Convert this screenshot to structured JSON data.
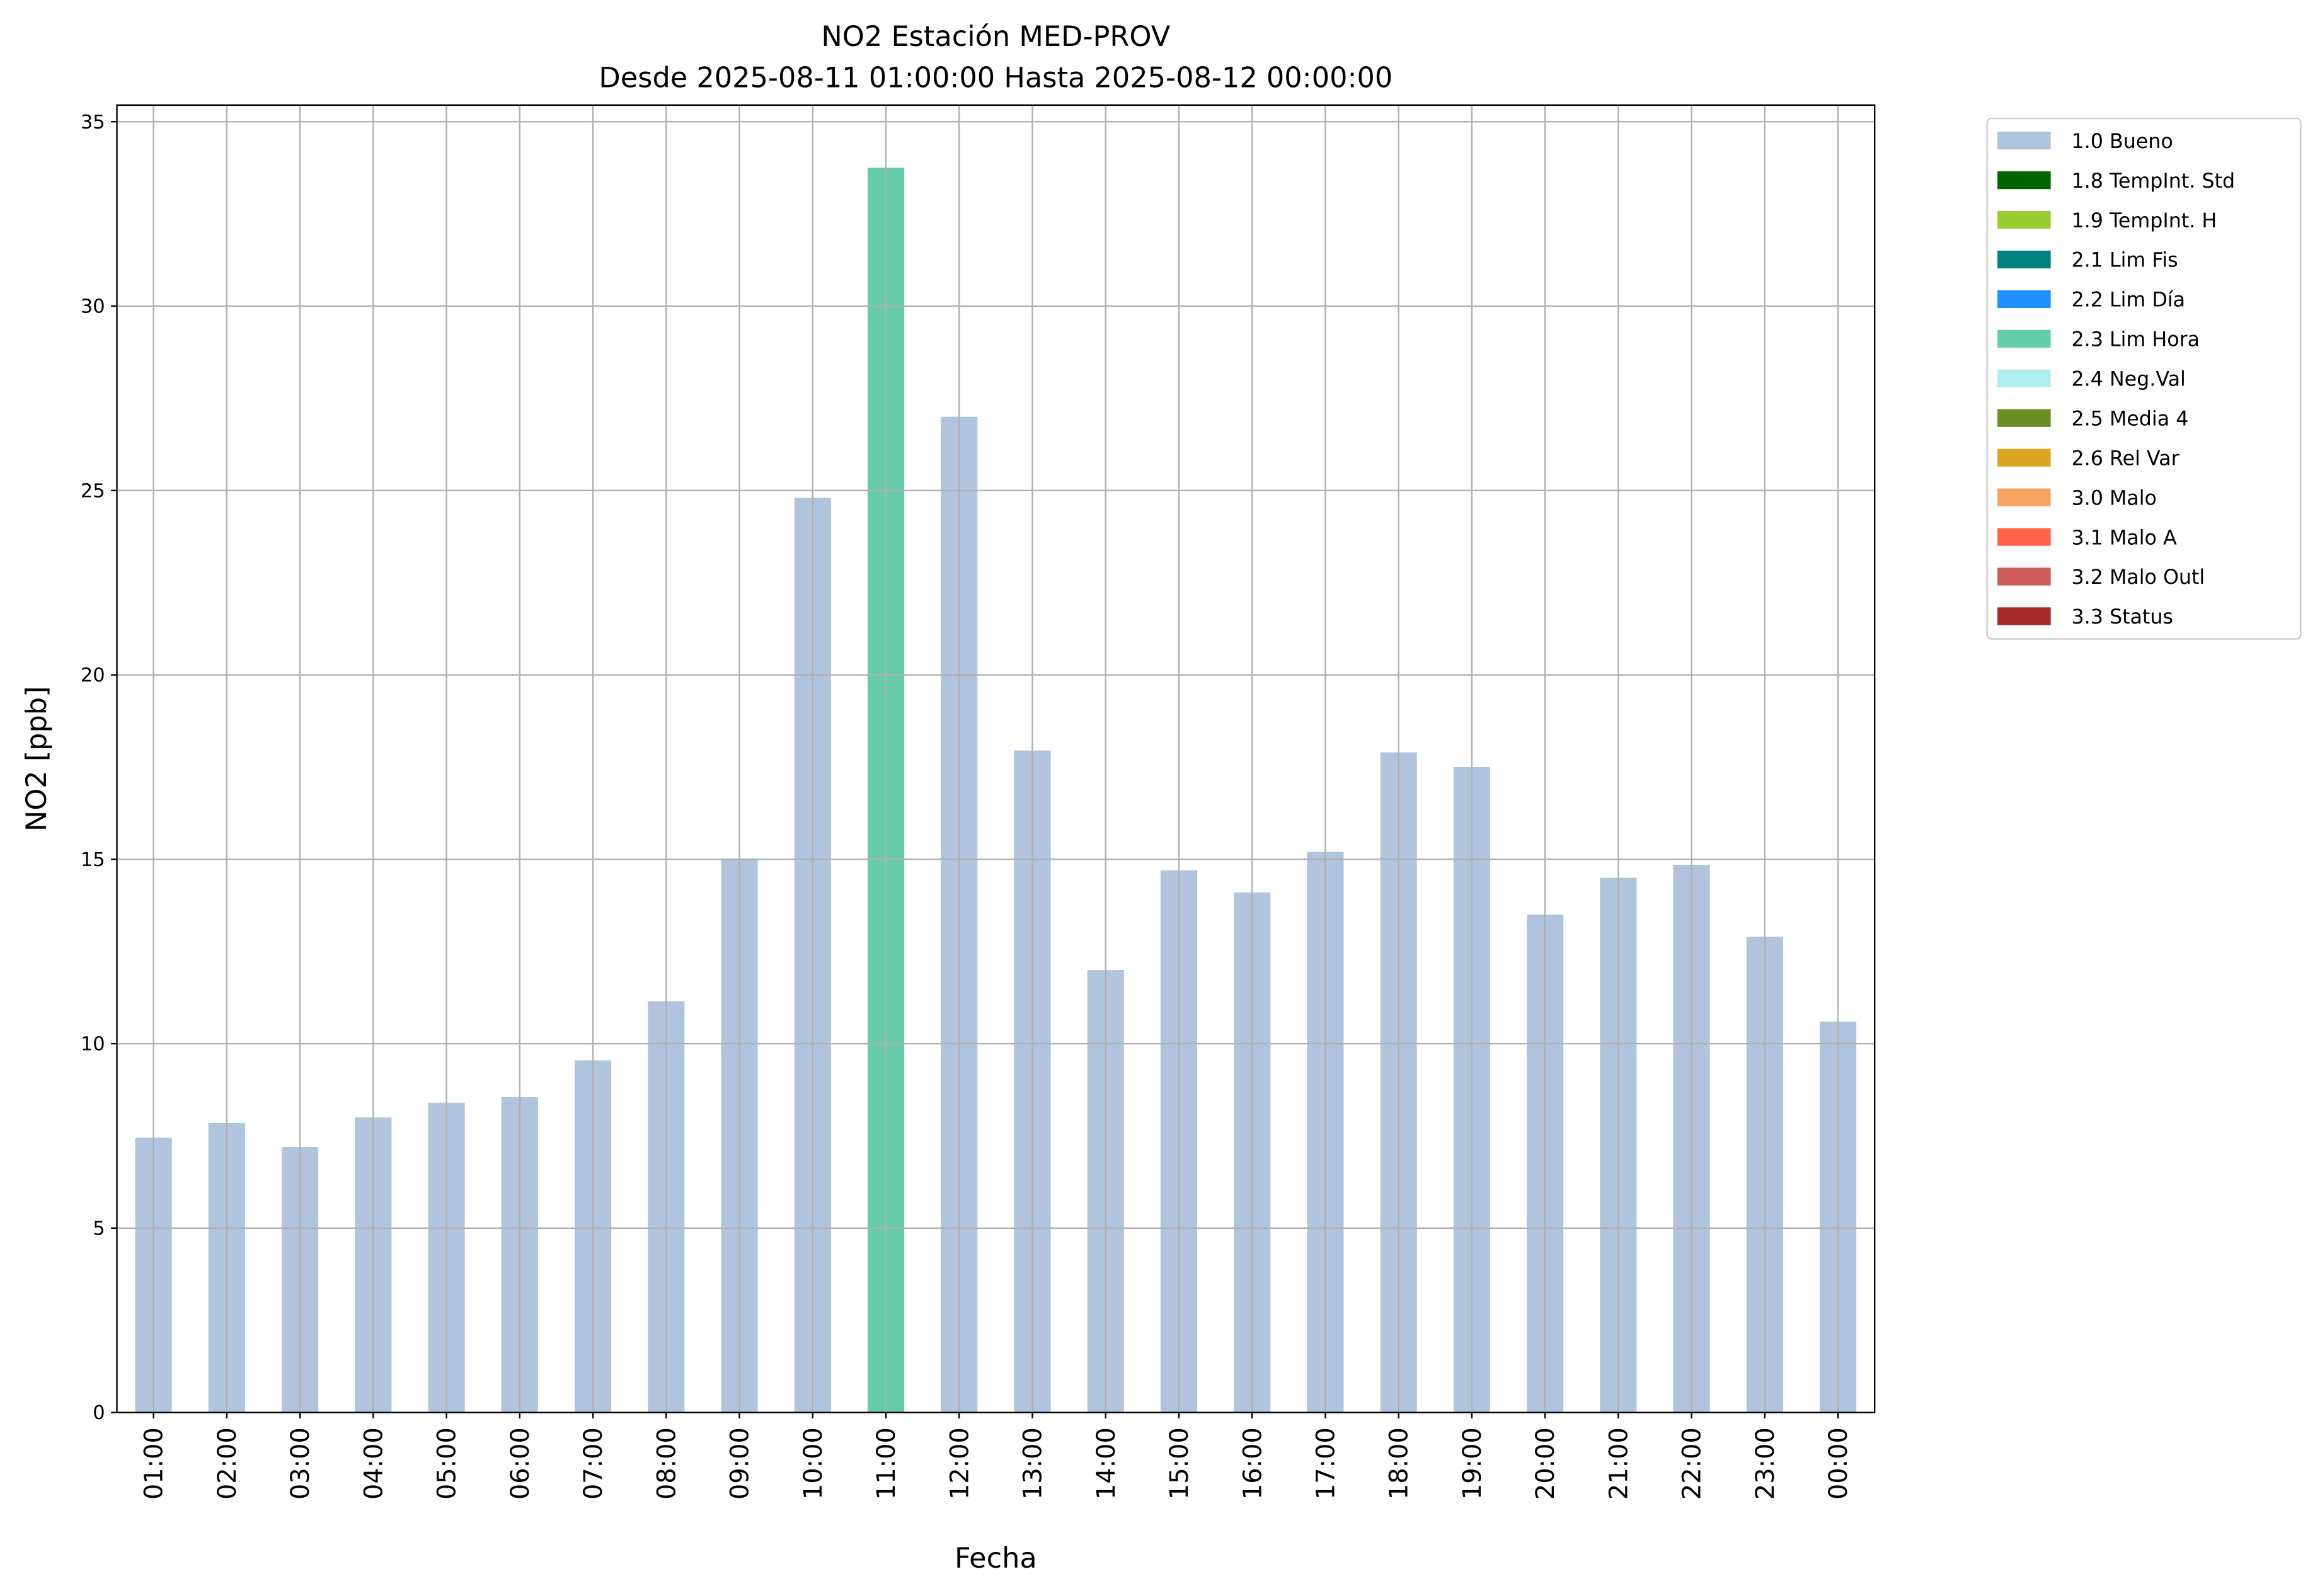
{
  "chart_data": {
    "type": "bar",
    "stacked": true,
    "title": "NO2 Estación MED-PROV",
    "subtitle": "Desde 2025-08-11 01:00:00 Hasta 2025-08-12 00:00:00",
    "x_label": "Fecha",
    "y_label": "NO2 [ppb]",
    "categories": [
      "01:00",
      "02:00",
      "03:00",
      "04:00",
      "05:00",
      "06:00",
      "07:00",
      "08:00",
      "09:00",
      "10:00",
      "11:00",
      "12:00",
      "13:00",
      "14:00",
      "15:00",
      "16:00",
      "17:00",
      "18:00",
      "19:00",
      "20:00",
      "21:00",
      "22:00",
      "23:00",
      "00:00"
    ],
    "series": [
      {
        "name": "1.0 Bueno",
        "color": "#b0c4de",
        "values": [
          7.45,
          7.85,
          7.2,
          8.0,
          8.4,
          8.55,
          9.55,
          11.15,
          15.0,
          24.8,
          null,
          27.0,
          17.95,
          12.0,
          14.7,
          14.1,
          15.2,
          17.9,
          17.5,
          13.5,
          14.5,
          14.85,
          12.9,
          10.6
        ]
      },
      {
        "name": "1.8 TempInt. Std",
        "color": "#006400",
        "values": [
          null,
          null,
          null,
          null,
          null,
          null,
          null,
          null,
          null,
          null,
          null,
          null,
          null,
          null,
          null,
          null,
          null,
          null,
          null,
          null,
          null,
          null,
          null,
          null
        ]
      },
      {
        "name": "1.9 TempInt. H",
        "color": "#9acd32",
        "values": [
          null,
          null,
          null,
          null,
          null,
          null,
          null,
          null,
          null,
          null,
          null,
          null,
          null,
          null,
          null,
          null,
          null,
          null,
          null,
          null,
          null,
          null,
          null,
          null
        ]
      },
      {
        "name": "2.1 Lim Fis",
        "color": "#008080",
        "values": [
          null,
          null,
          null,
          null,
          null,
          null,
          null,
          null,
          null,
          null,
          null,
          null,
          null,
          null,
          null,
          null,
          null,
          null,
          null,
          null,
          null,
          null,
          null,
          null
        ]
      },
      {
        "name": "2.2 Lim Día",
        "color": "#1e90ff",
        "values": [
          null,
          null,
          null,
          null,
          null,
          null,
          null,
          null,
          null,
          null,
          null,
          null,
          null,
          null,
          null,
          null,
          null,
          null,
          null,
          null,
          null,
          null,
          null,
          null
        ]
      },
      {
        "name": "2.3 Lim Hora",
        "color": "#66cdaa",
        "values": [
          null,
          null,
          null,
          null,
          null,
          null,
          null,
          null,
          null,
          null,
          33.75,
          null,
          null,
          null,
          null,
          null,
          null,
          null,
          null,
          null,
          null,
          null,
          null,
          null
        ]
      },
      {
        "name": "2.4 Neg.Val",
        "color": "#afeeee",
        "values": [
          null,
          null,
          null,
          null,
          null,
          null,
          null,
          null,
          null,
          null,
          null,
          null,
          null,
          null,
          null,
          null,
          null,
          null,
          null,
          null,
          null,
          null,
          null,
          null
        ]
      },
      {
        "name": "2.5 Media 4",
        "color": "#6b8e23",
        "values": [
          null,
          null,
          null,
          null,
          null,
          null,
          null,
          null,
          null,
          null,
          null,
          null,
          null,
          null,
          null,
          null,
          null,
          null,
          null,
          null,
          null,
          null,
          null,
          null
        ]
      },
      {
        "name": "2.6 Rel Var",
        "color": "#daa520",
        "values": [
          null,
          null,
          null,
          null,
          null,
          null,
          null,
          null,
          null,
          null,
          null,
          null,
          null,
          null,
          null,
          null,
          null,
          null,
          null,
          null,
          null,
          null,
          null,
          null
        ]
      },
      {
        "name": "3.0 Malo",
        "color": "#f4a460",
        "values": [
          null,
          null,
          null,
          null,
          null,
          null,
          null,
          null,
          null,
          null,
          null,
          null,
          null,
          null,
          null,
          null,
          null,
          null,
          null,
          null,
          null,
          null,
          null,
          null
        ]
      },
      {
        "name": "3.1 Malo A",
        "color": "#ff6347",
        "values": [
          null,
          null,
          null,
          null,
          null,
          null,
          null,
          null,
          null,
          null,
          null,
          null,
          null,
          null,
          null,
          null,
          null,
          null,
          null,
          null,
          null,
          null,
          null,
          null
        ]
      },
      {
        "name": "3.2 Malo Outl",
        "color": "#cd5c5c",
        "values": [
          null,
          null,
          null,
          null,
          null,
          null,
          null,
          null,
          null,
          null,
          null,
          null,
          null,
          null,
          null,
          null,
          null,
          null,
          null,
          null,
          null,
          null,
          null,
          null
        ]
      },
      {
        "name": "3.3 Status",
        "color": "#a52a2a",
        "values": [
          null,
          null,
          null,
          null,
          null,
          null,
          null,
          null,
          null,
          null,
          null,
          null,
          null,
          null,
          null,
          null,
          null,
          null,
          null,
          null,
          null,
          null,
          null,
          null
        ]
      }
    ],
    "ylim": [
      0,
      35.45
    ],
    "yticks": [
      0,
      5,
      10,
      15,
      20,
      25,
      30,
      35
    ],
    "grid": true,
    "legend": "outside-upper-right"
  }
}
